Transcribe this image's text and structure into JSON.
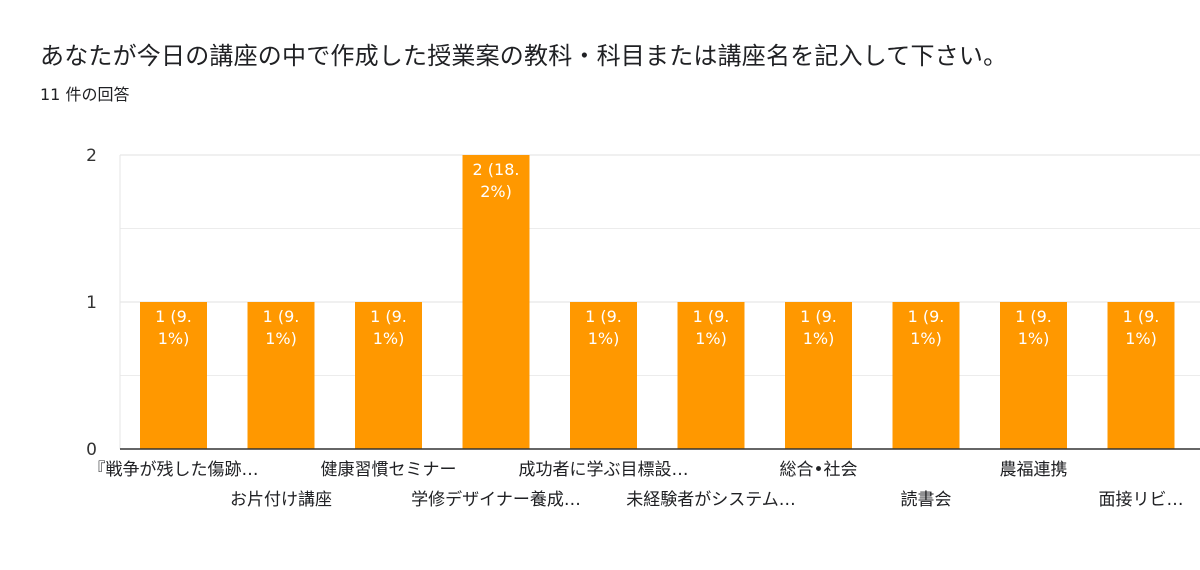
{
  "title": "あなたが今日の講座の中で作成した授業案の教科・科目または講座名を記入して下さい。",
  "response_count": "11 件の回答",
  "colors": {
    "bar": "#ff9800",
    "grid": "#e6e6e6",
    "axis": "#333333"
  },
  "chart_data": {
    "type": "bar",
    "categories": [
      "『戦争が残した傷跡…",
      "お片付け講座",
      "健康習慣セミナー",
      "学修デザイナー養成…",
      "成功者に学ぶ目標設…",
      "未経験者がシステム…",
      "総合•社会",
      "読書会",
      "農福連携",
      "面接リビ…"
    ],
    "values": [
      1,
      1,
      1,
      2,
      1,
      1,
      1,
      1,
      1,
      1
    ],
    "data_labels": [
      [
        "1 (9.",
        "1%)"
      ],
      [
        "1 (9.",
        "1%)"
      ],
      [
        "1 (9.",
        "1%)"
      ],
      [
        "2 (18.",
        "2%)"
      ],
      [
        "1 (9.",
        "1%)"
      ],
      [
        "1 (9.",
        "1%)"
      ],
      [
        "1 (9.",
        "1%)"
      ],
      [
        "1 (9.",
        "1%)"
      ],
      [
        "1 (9.",
        "1%)"
      ],
      [
        "1 (9.",
        "1%)"
      ]
    ],
    "y_ticks": [
      "0",
      "1",
      "2"
    ],
    "ylim": [
      0,
      2
    ],
    "grid": true,
    "legend": "none"
  }
}
